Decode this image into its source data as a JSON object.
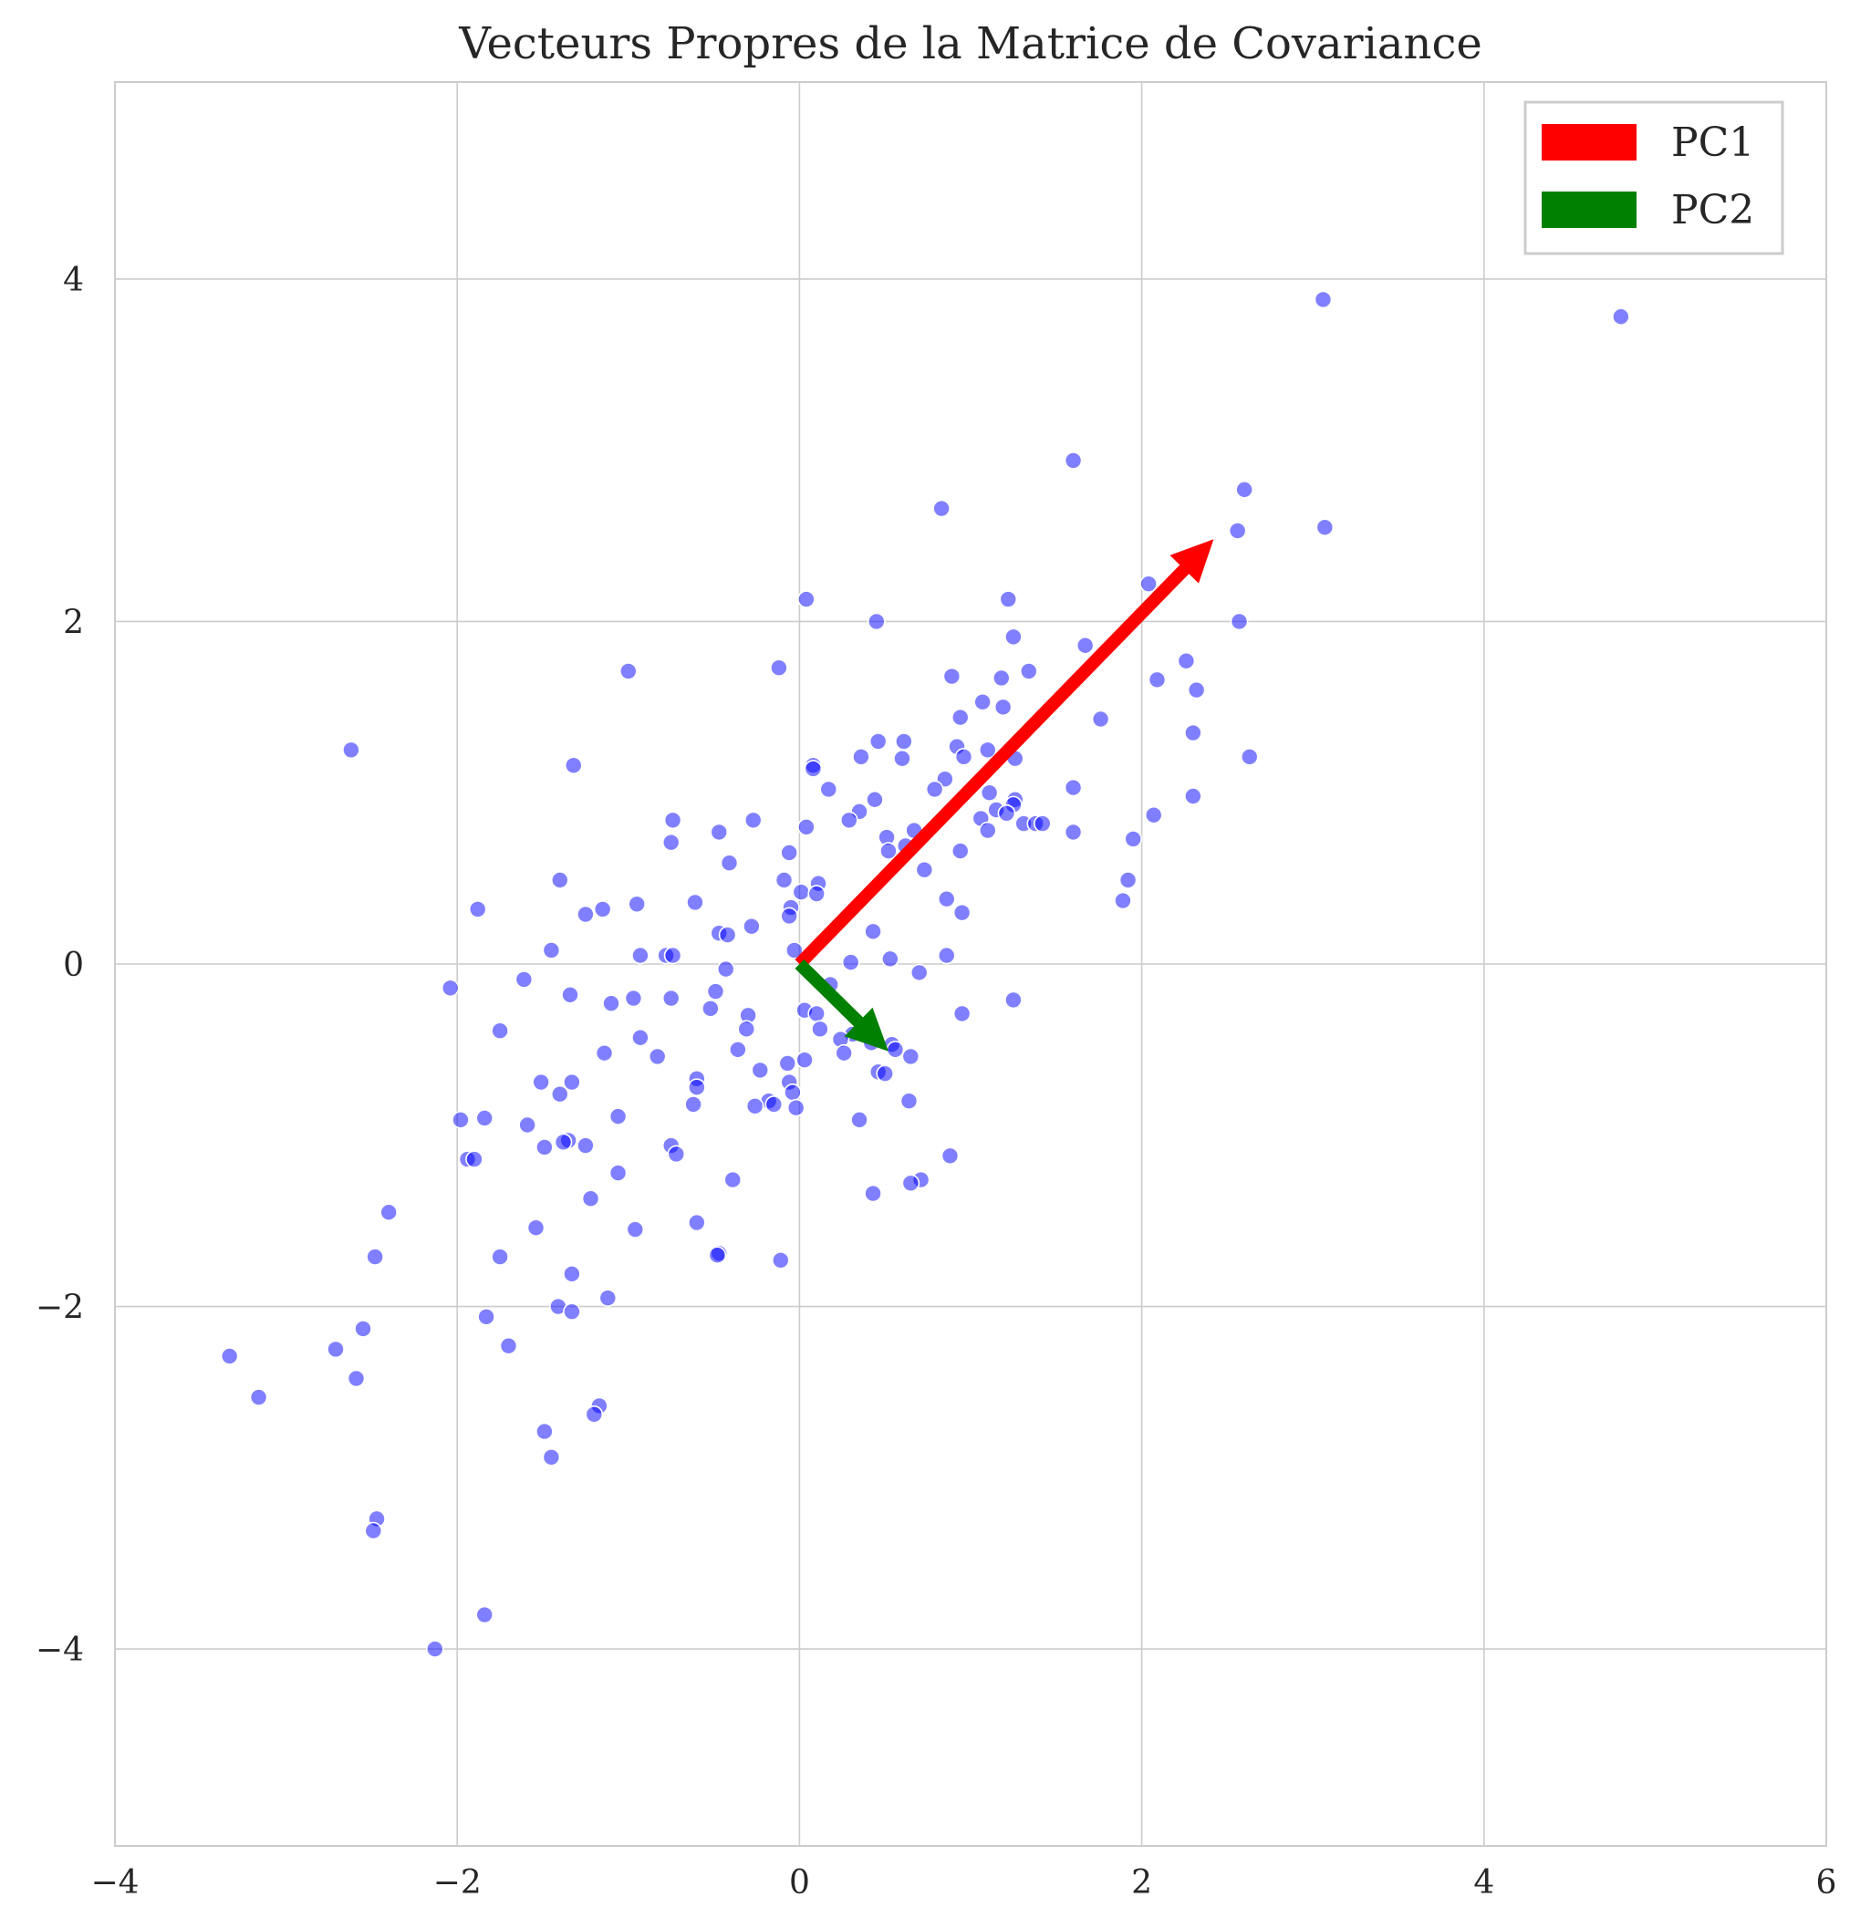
{
  "chart_data": {
    "type": "scatter",
    "title": "Vecteurs Propres de la Matrice de Covariance",
    "xlabel": "",
    "ylabel": "",
    "xlim": [
      -4,
      6
    ],
    "ylim": [
      -5.15,
      5.15
    ],
    "xticks": [
      -4,
      -2,
      0,
      2,
      4,
      6
    ],
    "xtick_labels": [
      "−4",
      "−2",
      "0",
      "2",
      "4",
      "6"
    ],
    "yticks": [
      -4,
      -2,
      0,
      2,
      4
    ],
    "ytick_labels": [
      "−4",
      "−2",
      "0",
      "2",
      "4"
    ],
    "grid": true,
    "legend_position": "top-right",
    "points_color": "#0000ff",
    "points": [
      [
        3.06,
        3.88
      ],
      [
        4.8,
        3.78
      ],
      [
        1.6,
        2.94
      ],
      [
        2.6,
        2.77
      ],
      [
        0.83,
        2.66
      ],
      [
        2.56,
        2.53
      ],
      [
        3.07,
        2.55
      ],
      [
        2.04,
        2.22
      ],
      [
        1.22,
        2.13
      ],
      [
        0.04,
        2.13
      ],
      [
        0.45,
        2.0
      ],
      [
        2.57,
        2.0
      ],
      [
        1.25,
        1.91
      ],
      [
        1.67,
        1.86
      ],
      [
        2.26,
        1.77
      ],
      [
        1.34,
        1.71
      ],
      [
        0.89,
        1.68
      ],
      [
        -0.12,
        1.73
      ],
      [
        -1.0,
        1.71
      ],
      [
        1.18,
        1.67
      ],
      [
        2.09,
        1.66
      ],
      [
        2.32,
        1.6
      ],
      [
        1.07,
        1.53
      ],
      [
        1.19,
        1.5
      ],
      [
        0.94,
        1.44
      ],
      [
        1.76,
        1.43
      ],
      [
        2.3,
        1.35
      ],
      [
        0.46,
        1.3
      ],
      [
        0.61,
        1.3
      ],
      [
        0.92,
        1.27
      ],
      [
        1.1,
        1.25
      ],
      [
        -2.62,
        1.25
      ],
      [
        0.36,
        1.21
      ],
      [
        0.6,
        1.2
      ],
      [
        0.96,
        1.21
      ],
      [
        1.26,
        1.2
      ],
      [
        2.63,
        1.21
      ],
      [
        0.08,
        1.16
      ],
      [
        -1.32,
        1.16
      ],
      [
        0.08,
        1.14
      ],
      [
        0.85,
        1.08
      ],
      [
        0.17,
        1.02
      ],
      [
        0.79,
        1.02
      ],
      [
        1.6,
        1.03
      ],
      [
        1.11,
        1.0
      ],
      [
        2.3,
        0.98
      ],
      [
        0.44,
        0.96
      ],
      [
        1.26,
        0.96
      ],
      [
        1.25,
        0.93
      ],
      [
        0.35,
        0.89
      ],
      [
        1.15,
        0.9
      ],
      [
        1.21,
        0.88
      ],
      [
        2.07,
        0.87
      ],
      [
        1.06,
        0.85
      ],
      [
        0.29,
        0.84
      ],
      [
        -0.27,
        0.84
      ],
      [
        -0.74,
        0.84
      ],
      [
        1.31,
        0.82
      ],
      [
        1.38,
        0.82
      ],
      [
        1.42,
        0.82
      ],
      [
        0.04,
        0.8
      ],
      [
        -0.47,
        0.77
      ],
      [
        0.67,
        0.78
      ],
      [
        1.1,
        0.78
      ],
      [
        1.6,
        0.77
      ],
      [
        0.51,
        0.74
      ],
      [
        1.95,
        0.73
      ],
      [
        -0.75,
        0.71
      ],
      [
        0.62,
        0.69
      ],
      [
        0.52,
        0.66
      ],
      [
        0.94,
        0.66
      ],
      [
        -0.06,
        0.65
      ],
      [
        -0.41,
        0.59
      ],
      [
        0.73,
        0.55
      ],
      [
        -1.4,
        0.49
      ],
      [
        -0.09,
        0.49
      ],
      [
        0.11,
        0.47
      ],
      [
        1.92,
        0.49
      ],
      [
        0.01,
        0.42
      ],
      [
        0.1,
        0.41
      ],
      [
        0.86,
        0.38
      ],
      [
        1.89,
        0.37
      ],
      [
        -0.05,
        0.33
      ],
      [
        -0.95,
        0.35
      ],
      [
        -0.61,
        0.36
      ],
      [
        -1.88,
        0.32
      ],
      [
        -1.15,
        0.32
      ],
      [
        -1.25,
        0.29
      ],
      [
        0.95,
        0.3
      ],
      [
        -0.06,
        0.28
      ],
      [
        -0.28,
        0.22
      ],
      [
        -0.47,
        0.18
      ],
      [
        -0.42,
        0.17
      ],
      [
        0.43,
        0.19
      ],
      [
        -1.45,
        0.08
      ],
      [
        -0.03,
        0.08
      ],
      [
        -0.93,
        0.05
      ],
      [
        -0.78,
        0.05
      ],
      [
        -0.74,
        0.05
      ],
      [
        0.86,
        0.05
      ],
      [
        0.53,
        0.03
      ],
      [
        0.3,
        0.01
      ],
      [
        -0.43,
        -0.03
      ],
      [
        0.7,
        -0.05
      ],
      [
        -1.61,
        -0.09
      ],
      [
        0.18,
        -0.12
      ],
      [
        -2.04,
        -0.14
      ],
      [
        -0.49,
        -0.16
      ],
      [
        -1.34,
        -0.18
      ],
      [
        -0.97,
        -0.2
      ],
      [
        -0.75,
        -0.2
      ],
      [
        -1.1,
        -0.23
      ],
      [
        1.25,
        -0.21
      ],
      [
        -0.52,
        -0.26
      ],
      [
        0.03,
        -0.27
      ],
      [
        0.1,
        -0.29
      ],
      [
        -0.3,
        -0.3
      ],
      [
        0.95,
        -0.29
      ],
      [
        -0.31,
        -0.38
      ],
      [
        -1.75,
        -0.39
      ],
      [
        0.12,
        -0.38
      ],
      [
        0.31,
        -0.41
      ],
      [
        -0.93,
        -0.43
      ],
      [
        0.24,
        -0.44
      ],
      [
        0.42,
        -0.46
      ],
      [
        0.54,
        -0.47
      ],
      [
        0.56,
        -0.5
      ],
      [
        -0.36,
        -0.5
      ],
      [
        -1.14,
        -0.52
      ],
      [
        0.26,
        -0.52
      ],
      [
        0.65,
        -0.54
      ],
      [
        -0.83,
        -0.54
      ],
      [
        0.03,
        -0.56
      ],
      [
        -0.07,
        -0.58
      ],
      [
        -0.23,
        -0.62
      ],
      [
        0.46,
        -0.63
      ],
      [
        0.5,
        -0.64
      ],
      [
        -0.6,
        -0.67
      ],
      [
        -1.51,
        -0.69
      ],
      [
        -1.33,
        -0.69
      ],
      [
        -0.06,
        -0.69
      ],
      [
        -0.04,
        -0.75
      ],
      [
        -0.6,
        -0.72
      ],
      [
        -1.4,
        -0.76
      ],
      [
        0.64,
        -0.8
      ],
      [
        -0.18,
        -0.8
      ],
      [
        -0.15,
        -0.82
      ],
      [
        -0.62,
        -0.82
      ],
      [
        -0.26,
        -0.83
      ],
      [
        -0.02,
        -0.84
      ],
      [
        -1.06,
        -0.89
      ],
      [
        0.35,
        -0.91
      ],
      [
        -1.98,
        -0.91
      ],
      [
        -1.84,
        -0.9
      ],
      [
        -1.59,
        -0.94
      ],
      [
        -1.35,
        -1.03
      ],
      [
        -1.38,
        -1.04
      ],
      [
        -1.49,
        -1.07
      ],
      [
        -1.25,
        -1.06
      ],
      [
        -0.75,
        -1.06
      ],
      [
        -0.72,
        -1.11
      ],
      [
        0.88,
        -1.12
      ],
      [
        -1.94,
        -1.14
      ],
      [
        -1.9,
        -1.14
      ],
      [
        -1.06,
        -1.22
      ],
      [
        -0.39,
        -1.26
      ],
      [
        0.71,
        -1.26
      ],
      [
        0.65,
        -1.28
      ],
      [
        0.43,
        -1.34
      ],
      [
        -1.22,
        -1.37
      ],
      [
        -2.4,
        -1.45
      ],
      [
        -0.6,
        -1.51
      ],
      [
        -1.54,
        -1.54
      ],
      [
        -0.96,
        -1.55
      ],
      [
        -0.47,
        -1.69
      ],
      [
        -0.48,
        -1.7
      ],
      [
        -1.75,
        -1.71
      ],
      [
        -2.48,
        -1.71
      ],
      [
        -0.11,
        -1.73
      ],
      [
        -1.33,
        -1.81
      ],
      [
        -1.12,
        -1.95
      ],
      [
        -1.41,
        -2.0
      ],
      [
        -1.33,
        -2.03
      ],
      [
        -1.83,
        -2.06
      ],
      [
        -2.55,
        -2.13
      ],
      [
        -1.7,
        -2.23
      ],
      [
        -2.71,
        -2.25
      ],
      [
        -3.33,
        -2.29
      ],
      [
        -2.59,
        -2.42
      ],
      [
        -3.16,
        -2.53
      ],
      [
        -1.17,
        -2.58
      ],
      [
        -1.2,
        -2.63
      ],
      [
        -1.49,
        -2.73
      ],
      [
        -1.45,
        -2.88
      ],
      [
        -2.47,
        -3.24
      ],
      [
        -2.49,
        -3.31
      ],
      [
        -1.84,
        -3.8
      ],
      [
        -2.13,
        -4.0
      ]
    ],
    "vectors": [
      {
        "name": "PC1",
        "color": "#ff0000",
        "origin": [
          0,
          0
        ],
        "end": [
          2.42,
          2.48
        ]
      },
      {
        "name": "PC2",
        "color": "#008000",
        "origin": [
          0,
          0
        ],
        "end": [
          0.52,
          -0.51
        ]
      }
    ]
  }
}
